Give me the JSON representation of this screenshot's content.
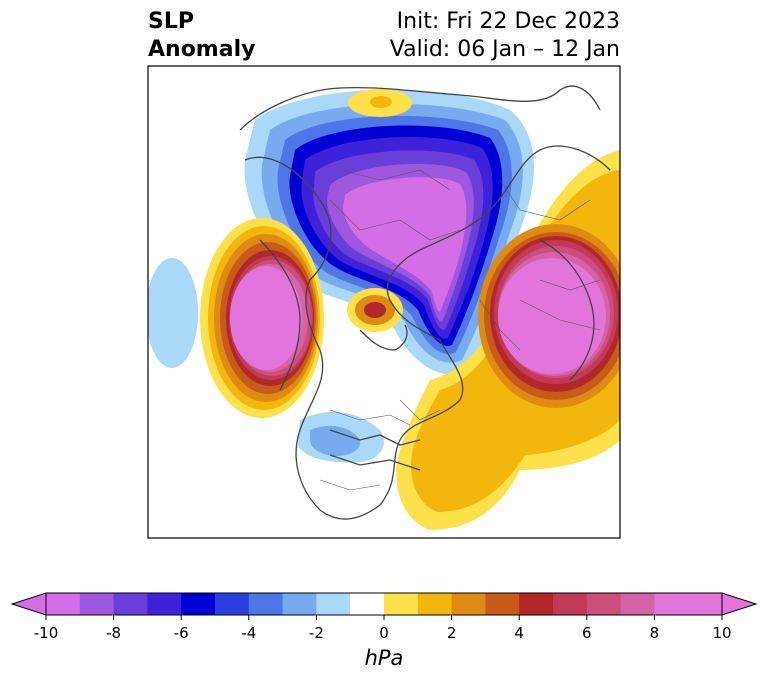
{
  "title": {
    "line1": "SLP",
    "line2": "Anomaly",
    "init": "Init: Fri 22 Dec 2023",
    "valid": "Valid: 06 Jan – 12 Jan"
  },
  "colorbar": {
    "unit": "hPa",
    "ticks": [
      "-10",
      "-8",
      "-6",
      "-4",
      "-2",
      "0",
      "2",
      "4",
      "6",
      "8",
      "10"
    ],
    "levels": [
      -10,
      -9,
      -8,
      -7,
      -6,
      -5,
      -4,
      -3,
      -2,
      -1,
      1,
      2,
      3,
      4,
      5,
      6,
      7,
      8,
      9,
      10
    ],
    "colors": [
      "#d36ee6",
      "#9e57df",
      "#6a3ed8",
      "#3e22d8",
      "#0000d6",
      "#2a3ede",
      "#4e76e6",
      "#78aaef",
      "#aad8f8",
      "#ffffff",
      "#fde04a",
      "#f2b60c",
      "#df8a12",
      "#c85a1a",
      "#b02828",
      "#c23a58",
      "#cc4e7c",
      "#d662a8",
      "#e274dc",
      "#e274dc"
    ],
    "extend_low_color": "#d36ee6",
    "extend_high_color": "#e274dc"
  }
}
